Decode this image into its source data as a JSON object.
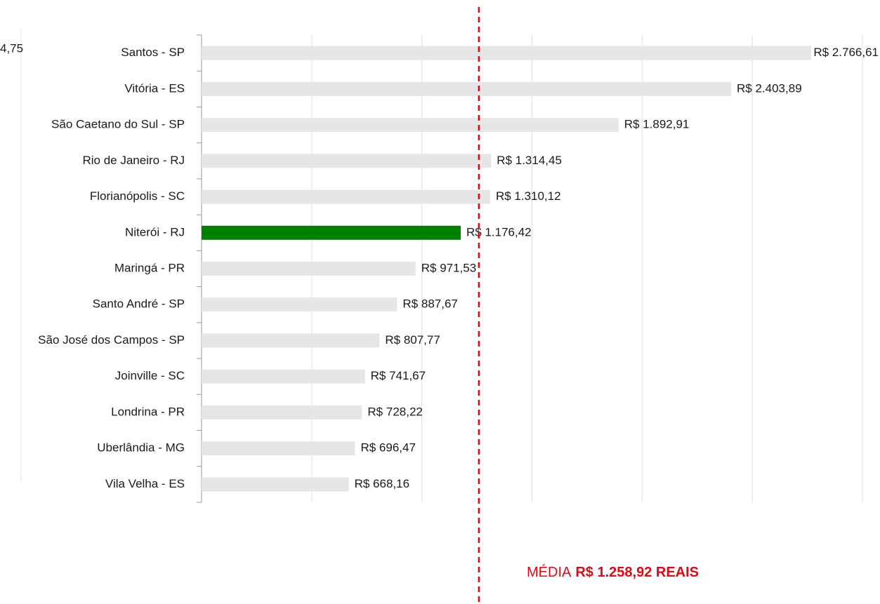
{
  "chart_data": {
    "type": "barh",
    "categories": [
      "Santos - SP",
      "Vitória - ES",
      "São Caetano do Sul - SP",
      "Rio de Janeiro - RJ",
      "Florianópolis - SC",
      "Niterói - RJ",
      "Maringá - PR",
      "Santo André - SP",
      "São José dos Campos - SP",
      "Joinville - SC",
      "Londrina - PR",
      "Uberlândia - MG",
      "Vila Velha - ES"
    ],
    "values": [
      2766.61,
      2403.89,
      1892.91,
      1314.45,
      1310.12,
      1176.42,
      971.53,
      887.67,
      807.77,
      741.67,
      728.22,
      696.47,
      668.16
    ],
    "value_labels": [
      "R$ 2.766,61",
      "R$ 2.403,89",
      "R$ 1.892,91",
      "R$ 1.314,45",
      "R$ 1.310,12",
      "R$ 1.176,42",
      "R$ 971,53",
      "R$ 887,67",
      "R$ 807,77",
      "R$ 741,67",
      "R$ 728,22",
      "R$ 696,47",
      "R$ 668,16"
    ],
    "colors": [
      "#e6e6e6",
      "#e6e6e6",
      "#e6e6e6",
      "#e6e6e6",
      "#e6e6e6",
      "#008000",
      "#e6e6e6",
      "#e6e6e6",
      "#e6e6e6",
      "#e6e6e6",
      "#e6e6e6",
      "#e6e6e6",
      "#e6e6e6"
    ],
    "xlim": [
      0,
      3000
    ],
    "xticks": [
      0,
      500,
      1000,
      1500,
      2000,
      2500,
      3000
    ],
    "grid": true,
    "mean": {
      "value": 1258.92,
      "prefix": "MÉDIA",
      "label": "R$ 1.258,92 REAIS",
      "color": "#e30613"
    },
    "annotations": [
      "4,75"
    ]
  }
}
